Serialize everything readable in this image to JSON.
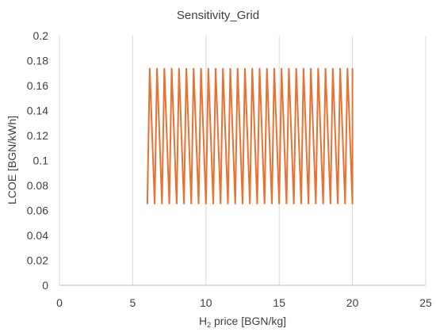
{
  "chart_data": {
    "type": "line",
    "title": "Sensitivity_Grid",
    "xlabel_main": "H",
    "xlabel_sub": "2",
    "xlabel_rest": " price [BGN/kg]",
    "ylabel": "LCOE [BGN/kWh]",
    "xlim": [
      0,
      25
    ],
    "ylim": [
      0,
      0.2
    ],
    "x_ticks": [
      "0",
      "5",
      "10",
      "15",
      "20",
      "25"
    ],
    "y_ticks": [
      "0",
      "0.02",
      "0.04",
      "0.06",
      "0.08",
      "0.1",
      "0.12",
      "0.14",
      "0.16",
      "0.18",
      "0.2"
    ],
    "grid": "vertical",
    "series": [
      {
        "color": "#E97132",
        "x": [
          6,
          6.16,
          6.16,
          6.5,
          6.5,
          6.66,
          6.66,
          7,
          7,
          7.16,
          7.16,
          7.5,
          7.5,
          7.66,
          7.66,
          8,
          8,
          8.16,
          8.16,
          8.5,
          8.5,
          8.66,
          8.66,
          9,
          9,
          9.16,
          9.16,
          9.5,
          9.5,
          9.66,
          9.66,
          10,
          10,
          10.16,
          10.16,
          10.5,
          10.5,
          10.66,
          10.66,
          11,
          11,
          11.16,
          11.16,
          11.5,
          11.5,
          11.66,
          11.66,
          12,
          12,
          12.16,
          12.16,
          12.5,
          12.5,
          12.66,
          12.66,
          13,
          13,
          13.16,
          13.16,
          13.5,
          13.5,
          13.66,
          13.66,
          14,
          14,
          14.16,
          14.16,
          14.5,
          14.5,
          14.66,
          14.66,
          15,
          15,
          15.16,
          15.16,
          15.5,
          15.5,
          15.66,
          15.66,
          16,
          16,
          16.16,
          16.16,
          16.5,
          16.5,
          16.66,
          16.66,
          17,
          17,
          17.16,
          17.16,
          17.5,
          17.5,
          17.66,
          17.66,
          18,
          18,
          18.16,
          18.16,
          18.5,
          18.5,
          18.66,
          18.66,
          19,
          19,
          19.16,
          19.16,
          19.5,
          19.5,
          19.66,
          19.66,
          20,
          20
        ],
        "y": [
          0.065,
          0.174,
          0.174,
          0.065,
          0.065,
          0.174,
          0.174,
          0.065,
          0.065,
          0.174,
          0.174,
          0.065,
          0.065,
          0.174,
          0.174,
          0.065,
          0.065,
          0.174,
          0.174,
          0.065,
          0.065,
          0.174,
          0.174,
          0.065,
          0.065,
          0.174,
          0.174,
          0.065,
          0.065,
          0.174,
          0.174,
          0.065,
          0.065,
          0.174,
          0.174,
          0.065,
          0.065,
          0.174,
          0.174,
          0.065,
          0.065,
          0.174,
          0.174,
          0.065,
          0.065,
          0.174,
          0.174,
          0.065,
          0.065,
          0.174,
          0.174,
          0.065,
          0.065,
          0.174,
          0.174,
          0.065,
          0.065,
          0.174,
          0.174,
          0.065,
          0.065,
          0.174,
          0.174,
          0.065,
          0.065,
          0.174,
          0.174,
          0.065,
          0.065,
          0.174,
          0.174,
          0.065,
          0.065,
          0.174,
          0.174,
          0.065,
          0.065,
          0.174,
          0.174,
          0.065,
          0.065,
          0.174,
          0.174,
          0.065,
          0.065,
          0.174,
          0.174,
          0.065,
          0.065,
          0.174,
          0.174,
          0.065,
          0.065,
          0.174,
          0.174,
          0.065,
          0.065,
          0.174,
          0.174,
          0.065,
          0.065,
          0.174,
          0.174,
          0.065,
          0.065,
          0.174,
          0.174,
          0.065,
          0.065,
          0.174,
          0.174,
          0.065,
          0.174
        ]
      }
    ]
  }
}
